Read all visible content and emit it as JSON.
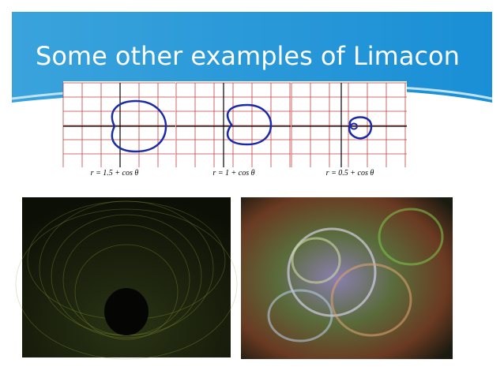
{
  "title": "Some other examples of Limacon",
  "figures": {
    "captions": [
      "r = 1.5 + cos θ",
      "r = 1 + cos θ",
      "r = 0.5 + cos θ"
    ]
  }
}
